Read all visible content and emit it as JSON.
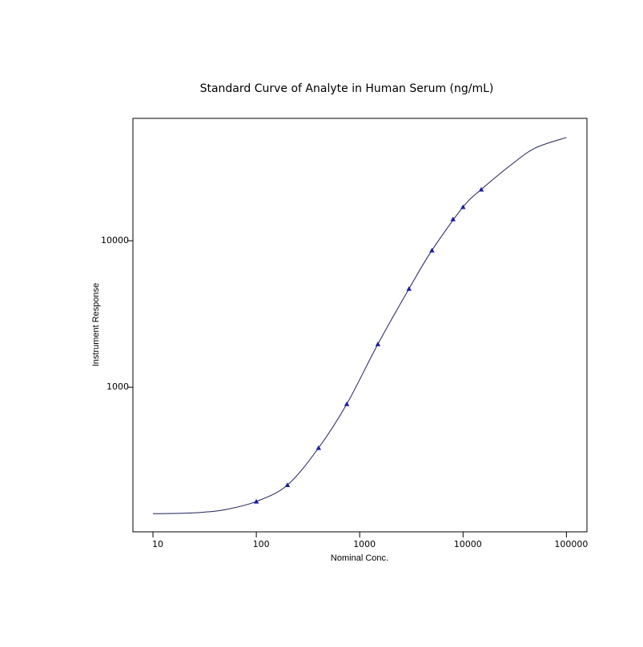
{
  "chart_data": {
    "type": "scatter",
    "title": "Standard Curve of Analyte in Human Serum (ng/mL)",
    "x_label": "Nominal Conc.",
    "y_label": "Instrument Response",
    "x_log": true,
    "y_log": true,
    "xlim": [
      6.4,
      158000
    ],
    "ylim": [
      103,
      68500
    ],
    "xticks": [
      10,
      100,
      1000,
      10000,
      100000
    ],
    "yticks": [
      1000,
      10000
    ],
    "points": {
      "color": "#1a1aa6",
      "marker": "triangle",
      "x": [
        100,
        200,
        400,
        750,
        1500,
        3000,
        5000,
        8000,
        10000,
        15000
      ],
      "values": [
        166,
        215,
        385,
        768,
        1970,
        4700,
        8600,
        14050,
        17000,
        22400
      ]
    },
    "curve": {
      "color": "#1f1f5a",
      "x": [
        10,
        20,
        30,
        50,
        100,
        200,
        400,
        750,
        1500,
        3000,
        5000,
        10000,
        15000,
        30000,
        50000,
        100000
      ],
      "values": [
        137,
        138,
        140,
        146,
        166,
        215,
        385,
        768,
        1970,
        4700,
        8600,
        17000,
        22400,
        33500,
        43000,
        50700
      ]
    }
  }
}
